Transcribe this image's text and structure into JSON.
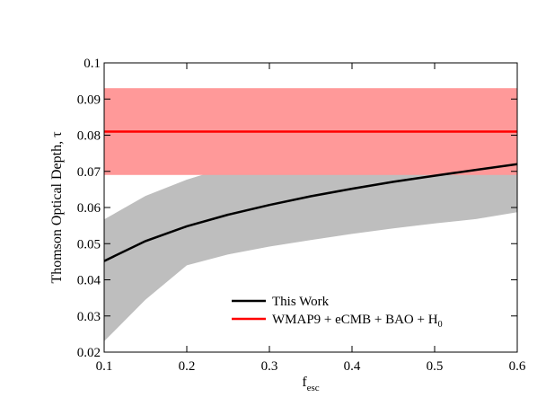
{
  "chart_data": {
    "type": "line",
    "title": "",
    "xlabel_main": "f",
    "xlabel_sub": "esc",
    "ylabel": "Thomson Optical Depth, τ",
    "xlim": [
      0.1,
      0.6
    ],
    "ylim": [
      0.02,
      0.1
    ],
    "x_ticks": [
      "0.1",
      "0.2",
      "0.3",
      "0.4",
      "0.5",
      "0.6"
    ],
    "y_ticks": [
      "0.02",
      "0.03",
      "0.04",
      "0.05",
      "0.06",
      "0.07",
      "0.08",
      "0.09",
      "0.1"
    ],
    "grid": false,
    "legend_position": "bottom-right",
    "series": [
      {
        "name": "This Work",
        "color": "#000000",
        "x": [
          0.1,
          0.15,
          0.2,
          0.25,
          0.3,
          0.35,
          0.4,
          0.45,
          0.5,
          0.55,
          0.6
        ],
        "y": [
          0.0452,
          0.0507,
          0.0548,
          0.058,
          0.0607,
          0.0631,
          0.0652,
          0.0671,
          0.0688,
          0.0704,
          0.072
        ],
        "band_upper": [
          0.0567,
          0.0632,
          0.0677,
          0.0712,
          0.0737,
          0.0757,
          0.0774,
          0.0788,
          0.08,
          0.0811,
          0.0822
        ],
        "band_lower": [
          0.023,
          0.0345,
          0.044,
          0.047,
          0.0492,
          0.051,
          0.0527,
          0.0542,
          0.0556,
          0.0568,
          0.0587
        ],
        "band_color": "#bebebe"
      },
      {
        "name_main": "WMAP9 + eCMB + BAO + H",
        "name_sub": "0",
        "color": "#ff0000",
        "value": 0.081,
        "band": [
          0.069,
          0.093
        ],
        "band_color": "#ff9999"
      }
    ]
  }
}
